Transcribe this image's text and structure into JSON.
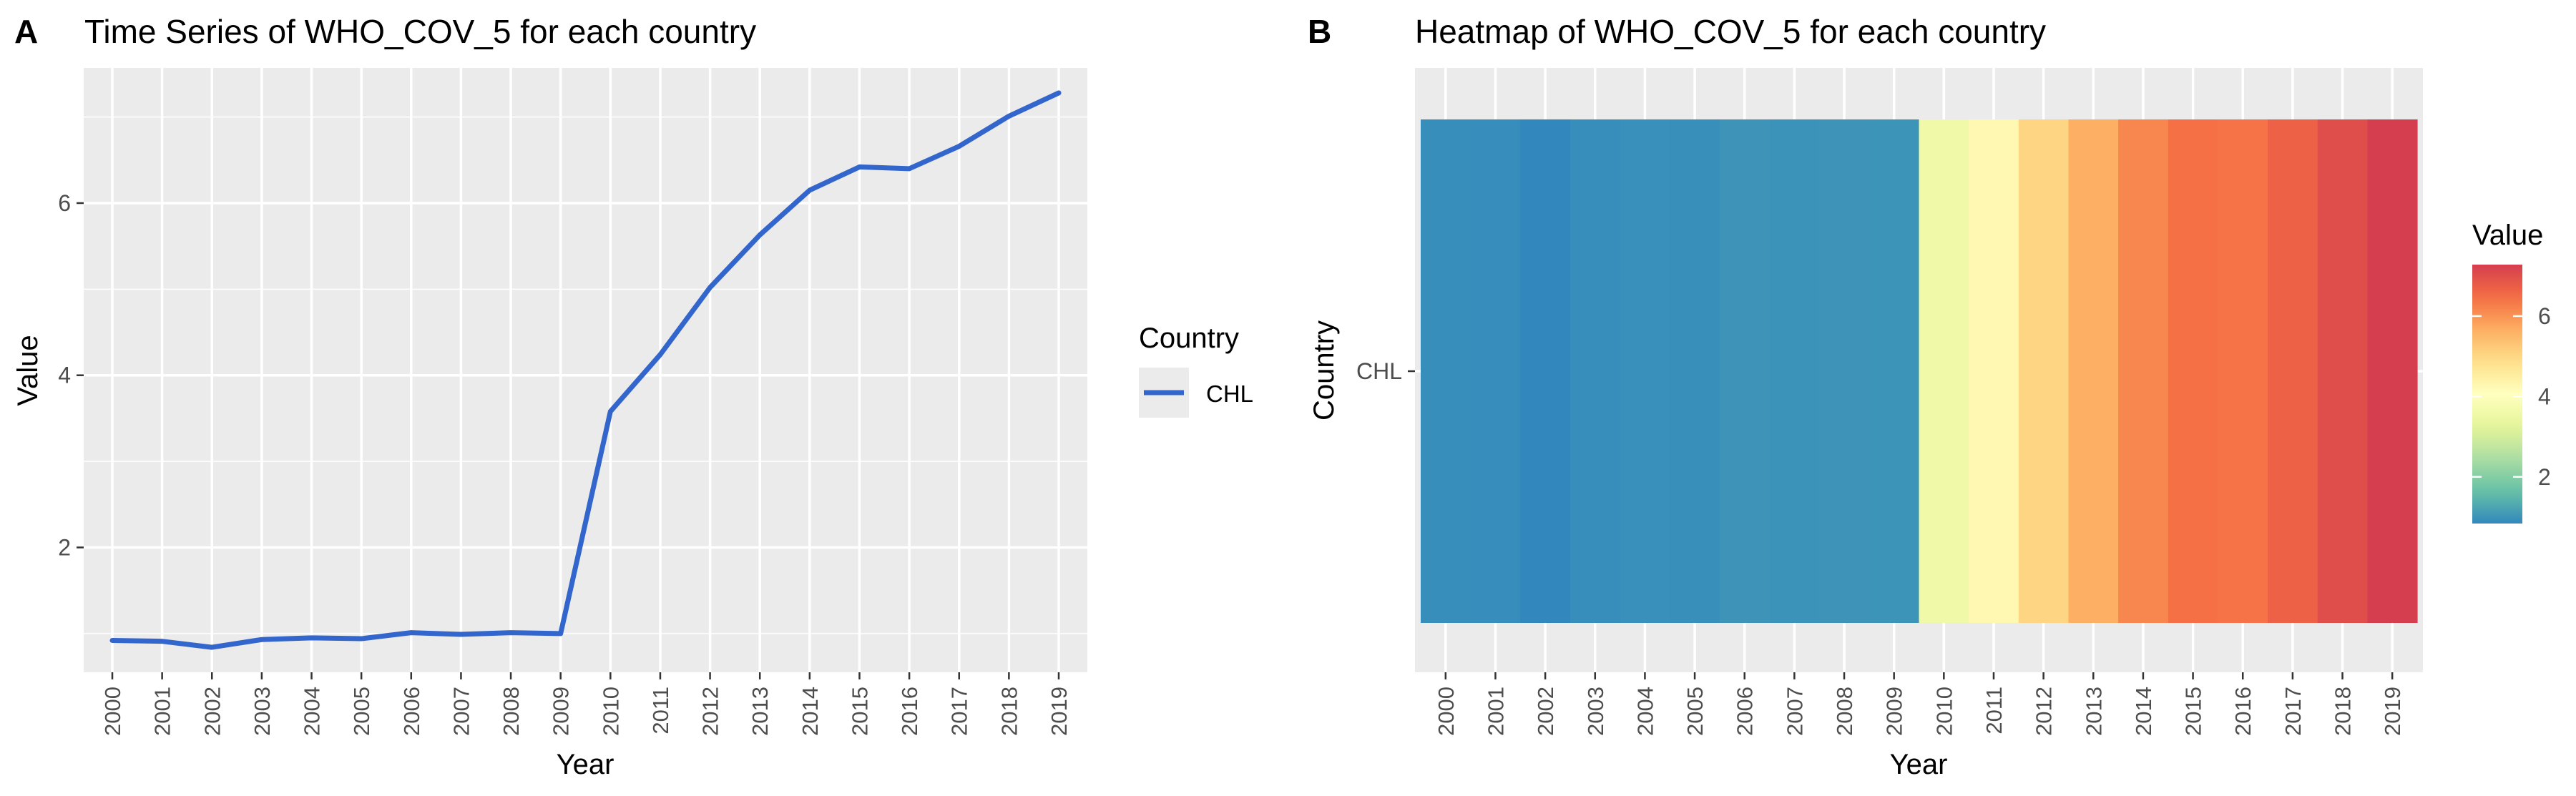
{
  "panels": [
    {
      "tag": "A",
      "title": "Time Series of WHO_COV_5 for each country"
    },
    {
      "tag": "B",
      "title": "Heatmap of WHO_COV_5 for each country"
    }
  ],
  "colors": {
    "panel_bg": "#EBEBEB",
    "grid": "#FFFFFF",
    "line": "#3366CC",
    "axis_text": "#4D4D4D",
    "text": "#000000"
  },
  "chart_data": [
    {
      "type": "line",
      "title": "Time Series of WHO_COV_5 for each country",
      "xlabel": "Year",
      "ylabel": "Value",
      "x": [
        2000,
        2001,
        2002,
        2003,
        2004,
        2005,
        2006,
        2007,
        2008,
        2009,
        2010,
        2011,
        2012,
        2013,
        2014,
        2015,
        2016,
        2017,
        2018,
        2019
      ],
      "series": [
        {
          "name": "CHL",
          "color": "#3366CC",
          "values": [
            0.92,
            0.91,
            0.84,
            0.93,
            0.95,
            0.94,
            1.01,
            0.99,
            1.01,
            1.0,
            3.58,
            4.24,
            5.02,
            5.63,
            6.15,
            6.42,
            6.4,
            6.66,
            7.01,
            7.28
          ]
        }
      ],
      "yticks": [
        2,
        4,
        6
      ],
      "ylim": [
        0.55,
        7.57
      ],
      "grid": true,
      "legend": {
        "title": "Country",
        "position": "right"
      }
    },
    {
      "type": "heatmap",
      "title": "Heatmap of WHO_COV_5 for each country",
      "xlabel": "Year",
      "ylabel": "Country",
      "x": [
        2000,
        2001,
        2002,
        2003,
        2004,
        2005,
        2006,
        2007,
        2008,
        2009,
        2010,
        2011,
        2012,
        2013,
        2014,
        2015,
        2016,
        2017,
        2018,
        2019
      ],
      "rows": [
        "CHL"
      ],
      "values": [
        [
          0.92,
          0.91,
          0.84,
          0.93,
          0.95,
          0.94,
          1.01,
          0.99,
          1.01,
          1.0,
          3.58,
          4.24,
          5.02,
          5.63,
          6.15,
          6.42,
          6.4,
          6.66,
          7.01,
          7.28
        ]
      ],
      "colorscale": "Spectral (reversed)",
      "legend": {
        "title": "Value",
        "ticks": [
          2,
          4,
          6
        ],
        "range": [
          0.84,
          7.28
        ],
        "position": "right"
      }
    }
  ]
}
